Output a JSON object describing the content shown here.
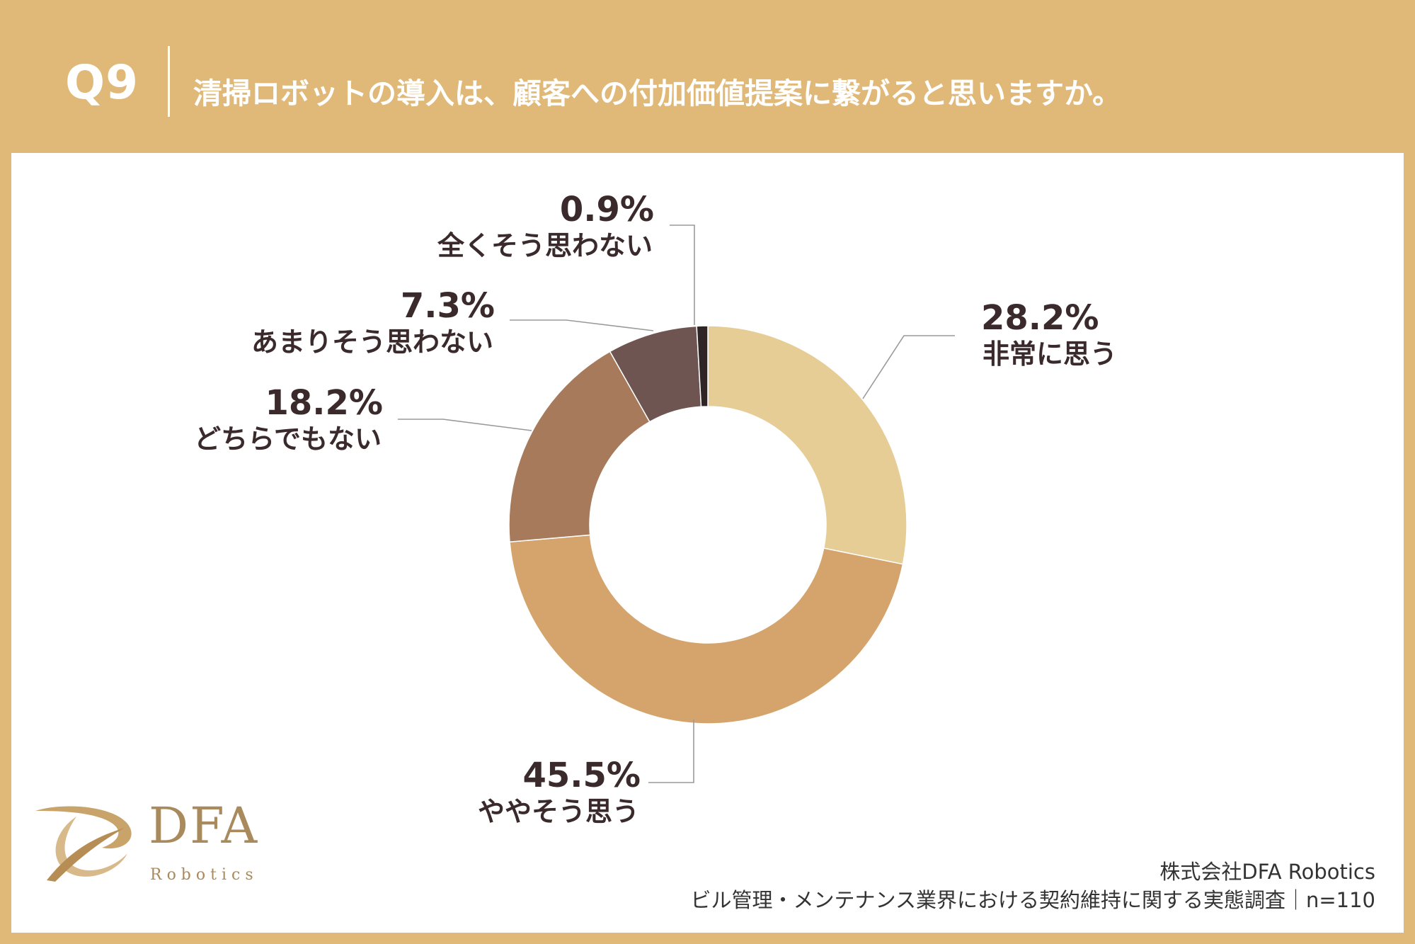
{
  "header": {
    "question_number": "Q9",
    "question_text": "清掃ロボットの導入は、顧客への付加価値提案に繋がると思いますか。"
  },
  "colors": {
    "background": "#E0B878",
    "panel": "#FFFFFF"
  },
  "chart_data": {
    "type": "pie",
    "style": "donut",
    "start": "12 o'clock, clockwise",
    "slices": [
      {
        "label": "非常に思う",
        "value": 28.2,
        "value_label": "28.2%",
        "color": "#E5CD95"
      },
      {
        "label": "ややそう思う",
        "value": 45.5,
        "value_label": "45.5%",
        "color": "#D4A46C"
      },
      {
        "label": "どちらでもない",
        "value": 18.2,
        "value_label": "18.2%",
        "color": "#A67A5B"
      },
      {
        "label": "あまりそう思わない",
        "value": 7.3,
        "value_label": "7.3%",
        "color": "#6E5551"
      },
      {
        "label": "全くそう思わない",
        "value": 0.9,
        "value_label": "0.9%",
        "color": "#2F2426"
      }
    ]
  },
  "footer": {
    "company": "株式会社DFA Robotics",
    "survey": "ビル管理・メンテナンス業界における契約維持に関する実態調査｜n=110"
  },
  "logo": {
    "name": "DFA",
    "sub": "Robotics",
    "icon": "dfa-swoosh-icon"
  }
}
